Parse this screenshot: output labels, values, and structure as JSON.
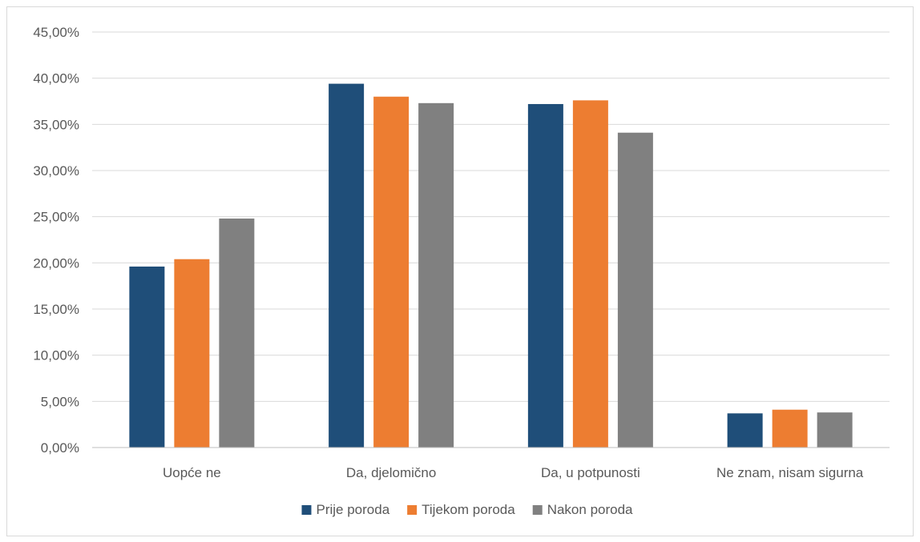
{
  "chart_data": {
    "type": "bar",
    "categories": [
      "Uopće ne",
      "Da, djelomično",
      "Da, u potpunosti",
      "Ne znam, nisam sigurna"
    ],
    "series": [
      {
        "name": "Prije poroda",
        "color": "#1f4e79",
        "values": [
          19.6,
          39.4,
          37.2,
          3.7
        ]
      },
      {
        "name": "Tijekom poroda",
        "color": "#ed7d31",
        "values": [
          20.4,
          38.0,
          37.6,
          4.1
        ]
      },
      {
        "name": "Nakon poroda",
        "color": "#808080",
        "values": [
          24.8,
          37.3,
          34.1,
          3.8
        ]
      }
    ],
    "ylim": [
      0,
      45
    ],
    "yticks": [
      "0,00%",
      "5,00%",
      "10,00%",
      "15,00%",
      "20,00%",
      "25,00%",
      "30,00%",
      "35,00%",
      "40,00%",
      "45,00%"
    ],
    "ytick_values": [
      0,
      5,
      10,
      15,
      20,
      25,
      30,
      35,
      40,
      45
    ],
    "title": "",
    "xlabel": "",
    "ylabel": "",
    "grid": true,
    "legend_position": "bottom",
    "gridline_color": "#d9d9d9",
    "axis_color": "#bfbfbf"
  }
}
